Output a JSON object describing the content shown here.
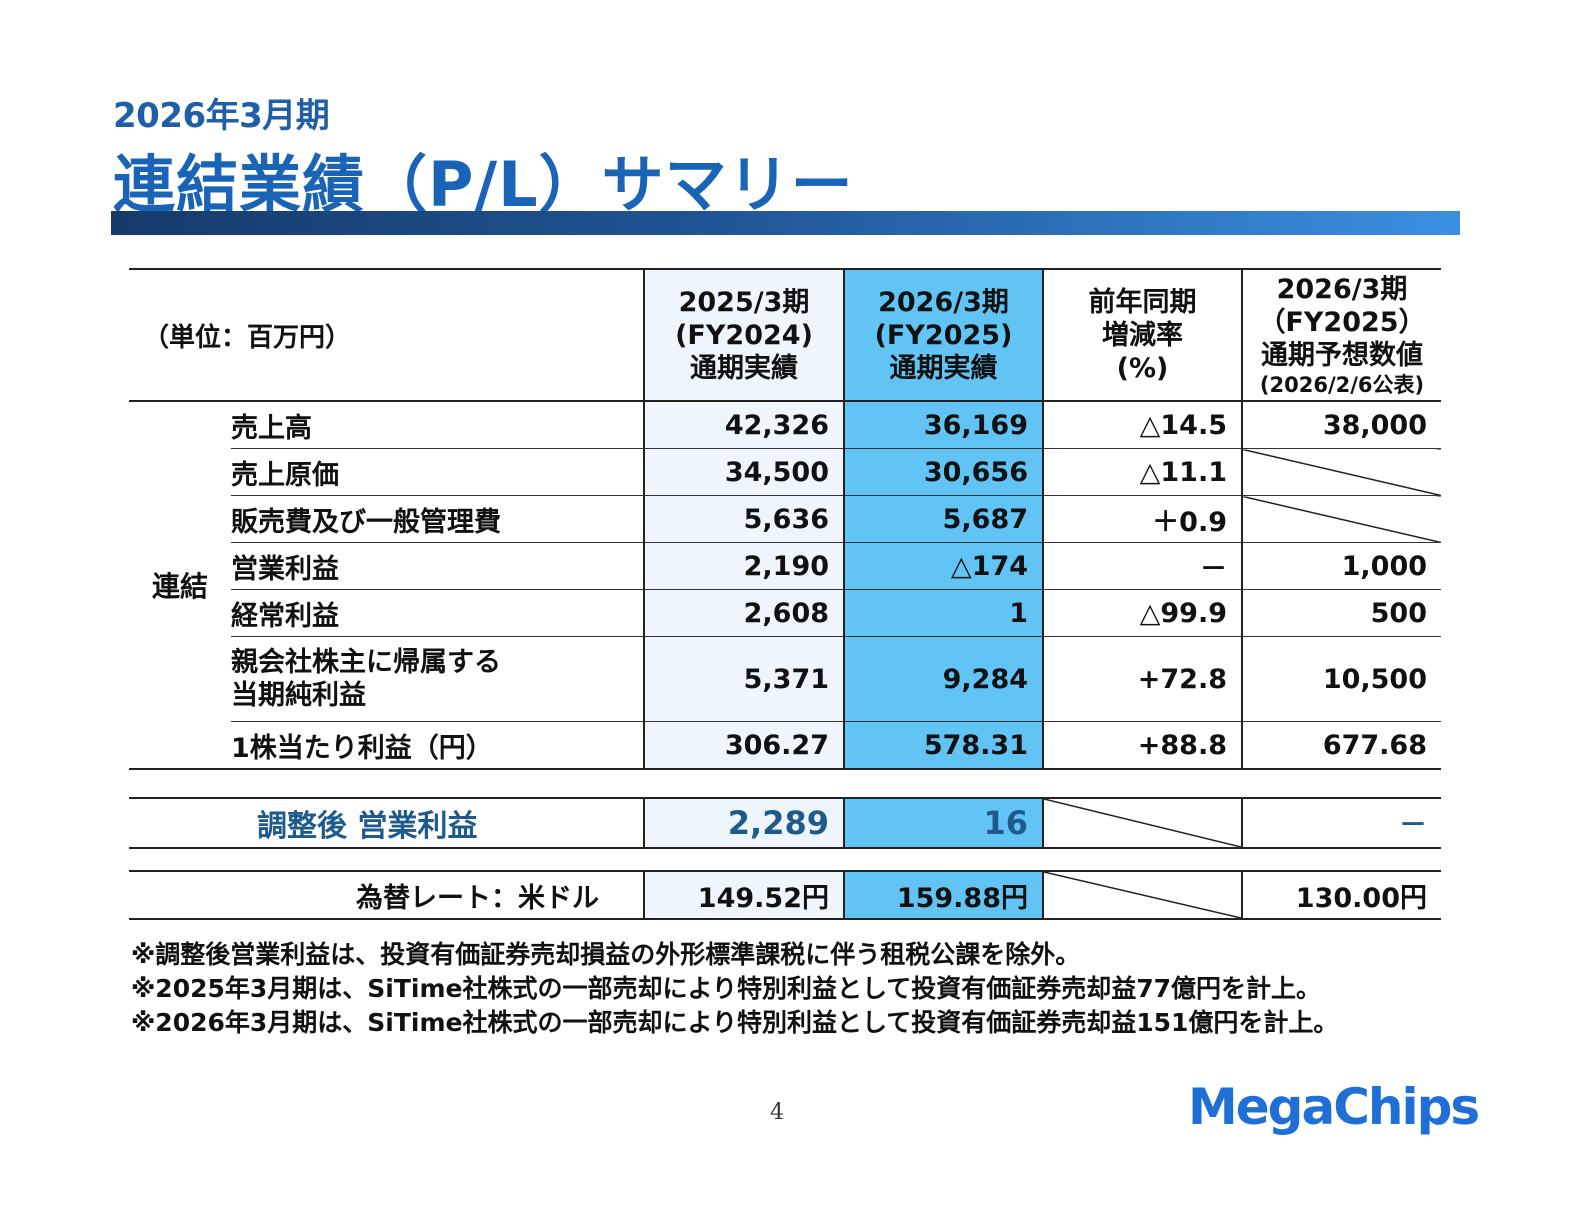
{
  "header": {
    "kicker": "2026年3月期",
    "title": "連結業績（P/L）サマリー"
  },
  "table": {
    "unit": "（単位：百万円）",
    "columns": [
      {
        "lines": [
          "2025/3期",
          "(FY2024)",
          "通期実績"
        ]
      },
      {
        "lines": [
          "2026/3期",
          "(FY2025)",
          "通期実績"
        ]
      },
      {
        "lines": [
          "前年同期",
          "増減率",
          "(%)"
        ]
      },
      {
        "lines": [
          "2026/3期",
          "（FY2025）",
          "通期予想数値",
          "(2026/2/6公表)"
        ]
      }
    ],
    "group_label": "連結",
    "rows": [
      {
        "label": "売上高",
        "fy2024": "42,326",
        "fy2025": "36,169",
        "change": "△14.5",
        "forecast": "38,000"
      },
      {
        "label": "売上原価",
        "fy2024": "34,500",
        "fy2025": "30,656",
        "change": "△11.1",
        "forecast": ""
      },
      {
        "label": "販売費及び一般管理費",
        "fy2024": "5,636",
        "fy2025": "5,687",
        "change": "＋0.9",
        "forecast": ""
      },
      {
        "label": "営業利益",
        "fy2024": "2,190",
        "fy2025": "△174",
        "change": "－",
        "forecast": "1,000"
      },
      {
        "label": "経常利益",
        "fy2024": "2,608",
        "fy2025": "1",
        "change": "△99.9",
        "forecast": "500"
      },
      {
        "label_lines": [
          "親会社株主に帰属する",
          "当期純利益"
        ],
        "fy2024": "5,371",
        "fy2025": "9,284",
        "change": "+72.8",
        "forecast": "10,500"
      },
      {
        "label": "1株当たり利益（円）",
        "fy2024": "306.27",
        "fy2025": "578.31",
        "change": "+88.8",
        "forecast": "677.68"
      }
    ]
  },
  "adjusted": {
    "label": "調整後 営業利益",
    "fy2024": "2,289",
    "fy2025": "16",
    "forecast": "－"
  },
  "fx": {
    "label": "為替レート：米ドル",
    "fy2024": "149.52円",
    "fy2025": "159.88円",
    "forecast": "130.00円"
  },
  "notes": [
    "※調整後営業利益は、投資有価証券売却損益の外形標準課税に伴う租税公課を除外。",
    "※2025年3月期は、SiTime社株式の一部売却により特別利益として投資有価証券売却益77億円を計上。",
    "※2026年3月期は、SiTime社株式の一部売却により特別利益として投資有価証券売却益151億円を計上。"
  ],
  "footer": {
    "page_number": "4",
    "logo": "MegaChips"
  },
  "colors": {
    "title_blue": "#1a64b8",
    "current_column": "#61c4f4",
    "previous_column": "#eef5fc"
  }
}
